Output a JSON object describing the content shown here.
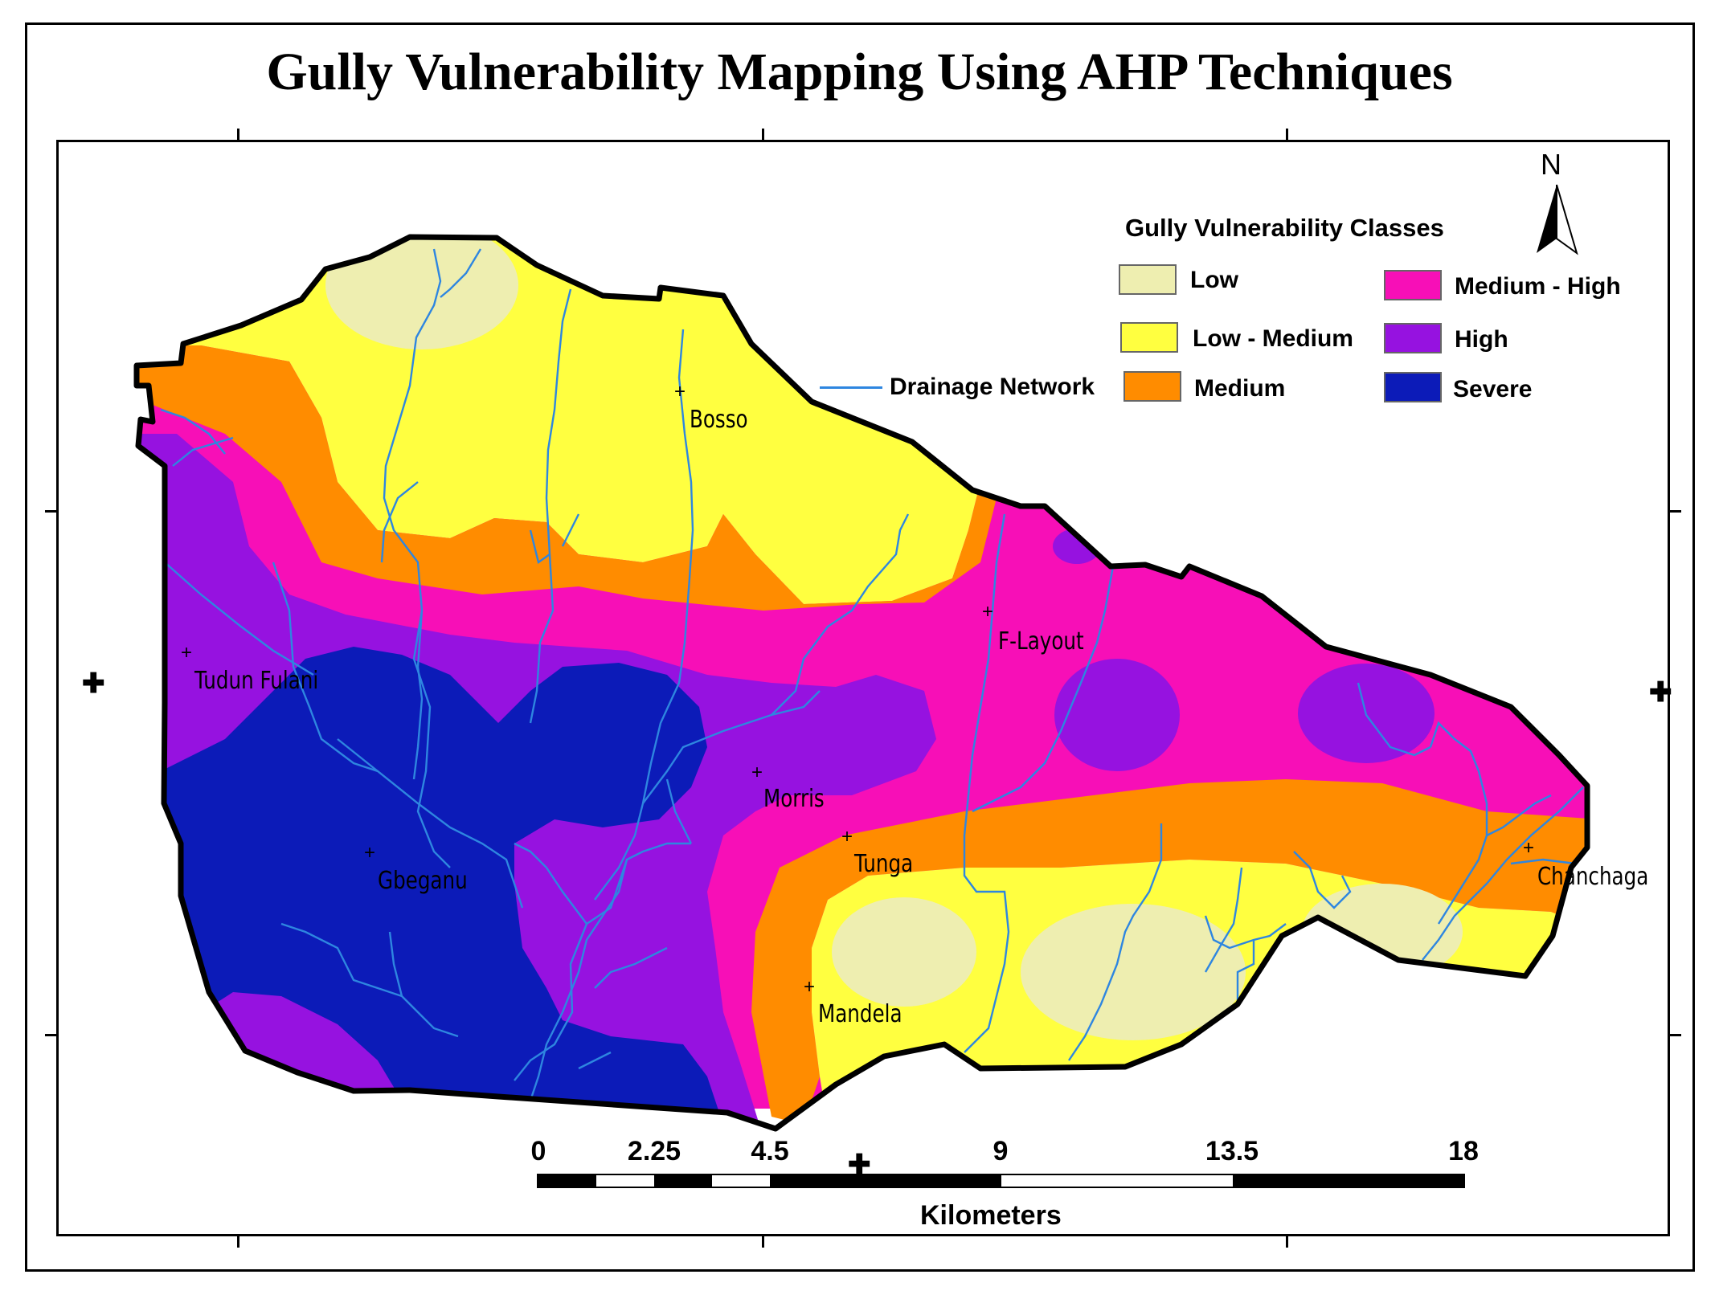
{
  "title": "Gully Vulnerability Mapping Using AHP Techniques",
  "legend": {
    "title": "Gully Vulnerability Classes",
    "classes": [
      {
        "label": "Low",
        "color": "#eeeeb0"
      },
      {
        "label": "Low - Medium",
        "color": "#ffff40"
      },
      {
        "label": "Medium",
        "color": "#ff8c00"
      },
      {
        "label": "Medium - High",
        "color": "#f70fb7"
      },
      {
        "label": "High",
        "color": "#9612e0"
      },
      {
        "label": "Severe",
        "color": "#0c1bb8"
      }
    ],
    "drainage": {
      "label": "Drainage Network",
      "color": "#2e86e0"
    }
  },
  "north_arrow": {
    "label": "N"
  },
  "towns": [
    "Bosso",
    "F-Layout",
    "Tudun Fulani",
    "Morris",
    "Tunga",
    "Gbeganu",
    "Chanchaga",
    "Mandela"
  ],
  "scale_bar": {
    "labels": [
      "0",
      "2.25",
      "4.5",
      "9",
      "13.5",
      "18"
    ],
    "units": "Kilometers"
  }
}
